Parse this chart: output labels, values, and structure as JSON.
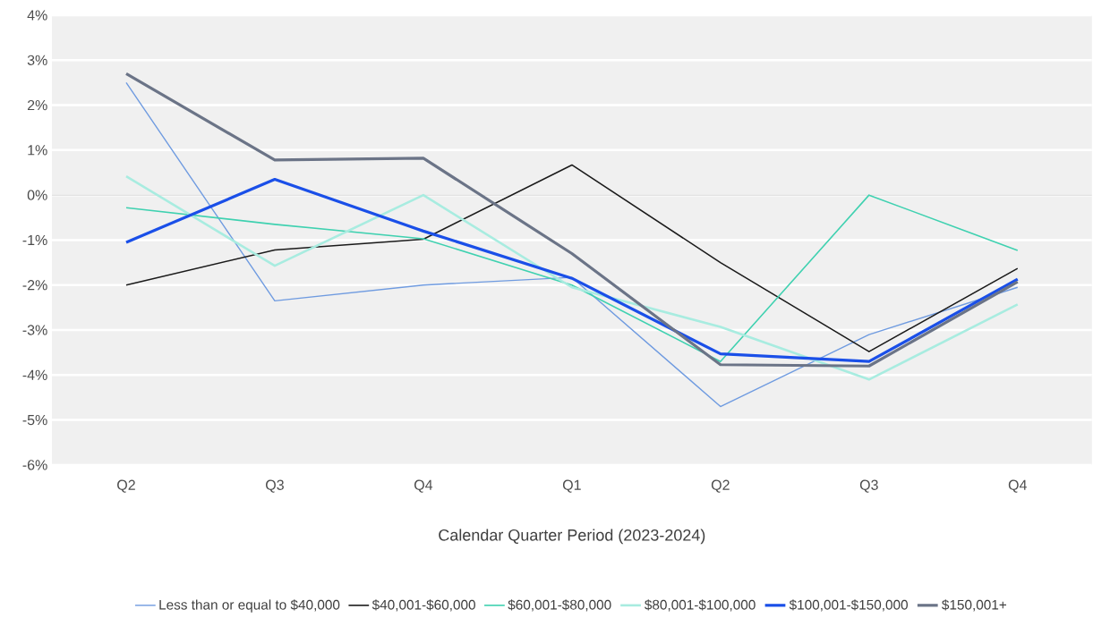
{
  "chart_data": {
    "type": "line",
    "xlabel": "Calendar Quarter Period (2023-2024)",
    "categories": [
      "Q2",
      "Q3",
      "Q4",
      "Q1",
      "Q2",
      "Q3",
      "Q4"
    ],
    "series": [
      {
        "name": "Less than or equal to $40,000",
        "color": "#6f9be0",
        "values": [
          2.5,
          -2.35,
          -2.0,
          -1.83,
          -4.7,
          -3.1,
          -2.05
        ]
      },
      {
        "name": "$40,001-$60,000",
        "color": "#1a1a1a",
        "values": [
          -2.0,
          -1.22,
          -0.98,
          0.67,
          -1.5,
          -3.48,
          -1.63
        ]
      },
      {
        "name": "$60,001-$80,000",
        "color": "#3fd1b0",
        "values": [
          -0.28,
          -0.65,
          -0.97,
          -2.0,
          -3.7,
          0.0,
          -1.23
        ]
      },
      {
        "name": "$80,001-$100,000",
        "color": "#a8ece0",
        "values": [
          0.42,
          -1.57,
          0.0,
          -2.05,
          -2.93,
          -4.1,
          -2.43
        ]
      },
      {
        "name": "$100,001-$150,000",
        "color": "#1a4fe8",
        "values": [
          -1.05,
          0.35,
          -0.8,
          -1.85,
          -3.53,
          -3.7,
          -1.87
        ]
      },
      {
        "name": "$150,001+",
        "color": "#6b7487",
        "values": [
          2.7,
          0.78,
          0.82,
          -1.3,
          -3.77,
          -3.8,
          -1.93
        ]
      }
    ],
    "ylim": [
      -6,
      4
    ],
    "yticks": [
      {
        "value": -6,
        "label": "-6%"
      },
      {
        "value": -5,
        "label": "-5%"
      },
      {
        "value": -4,
        "label": "-4%"
      },
      {
        "value": -3,
        "label": "-3%"
      },
      {
        "value": -2,
        "label": "-2%"
      },
      {
        "value": -1,
        "label": "-1%"
      },
      {
        "value": 0,
        "label": "0%"
      },
      {
        "value": 1,
        "label": "1%"
      },
      {
        "value": 2,
        "label": "2%"
      },
      {
        "value": 3,
        "label": "3%"
      },
      {
        "value": 4,
        "label": "4%"
      }
    ],
    "grid": "y",
    "legend": "bottom",
    "marker": "none",
    "line_style": "solid"
  }
}
